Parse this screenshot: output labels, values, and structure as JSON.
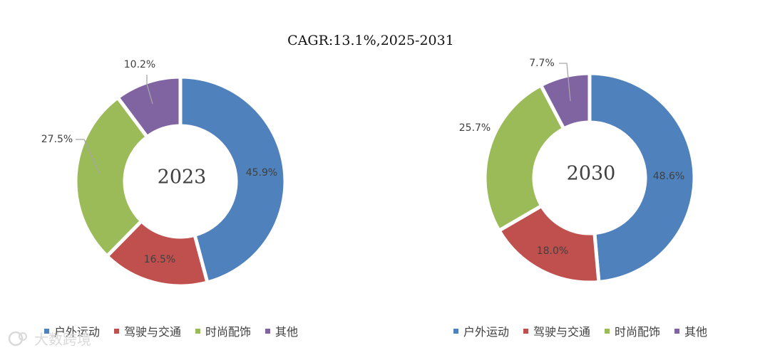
{
  "header": {
    "cagr_label": "CAGR:13.1%,2025-2031"
  },
  "legend_items": [
    {
      "label": "户外运动",
      "color": "#4F81BD"
    },
    {
      "label": "驾驶与交通",
      "color": "#C0504D"
    },
    {
      "label": "时尚配饰",
      "color": "#9BBB59"
    },
    {
      "label": "其他",
      "color": "#8064A2"
    }
  ],
  "chart_data": [
    {
      "type": "pie",
      "center_label": "2023",
      "categories": [
        "户外运动",
        "驾驶与交通",
        "时尚配饰",
        "其他"
      ],
      "values": [
        45.9,
        16.5,
        27.5,
        10.2
      ],
      "value_labels": [
        "45.9%",
        "16.5%",
        "27.5%",
        "10.2%"
      ],
      "colors": [
        "#4F81BD",
        "#C0504D",
        "#9BBB59",
        "#8064A2"
      ],
      "legend_position": "bottom"
    },
    {
      "type": "pie",
      "center_label": "2030",
      "categories": [
        "户外运动",
        "驾驶与交通",
        "时尚配饰",
        "其他"
      ],
      "values": [
        48.6,
        18.0,
        25.7,
        7.7
      ],
      "value_labels": [
        "48.6%",
        "18.0%",
        "25.7%",
        "7.7%"
      ],
      "colors": [
        "#4F81BD",
        "#C0504D",
        "#9BBB59",
        "#8064A2"
      ],
      "legend_position": "bottom"
    }
  ],
  "watermark": {
    "text": "大数跨境"
  }
}
